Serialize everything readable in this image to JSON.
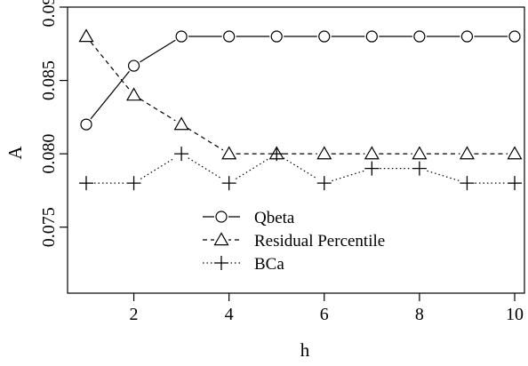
{
  "chart_data": {
    "type": "line",
    "title": "",
    "xlabel": "h",
    "ylabel": "A",
    "xlim": [
      1,
      10
    ],
    "ylim": [
      0.0705,
      0.09
    ],
    "x_ticks": [
      2,
      4,
      6,
      8,
      10
    ],
    "y_ticks": [
      0.075,
      0.08,
      0.085,
      0.09
    ],
    "x_tick_labels": [
      "2",
      "4",
      "6",
      "8",
      "10"
    ],
    "y_tick_labels": [
      "0.075",
      "0.080",
      "0.085",
      "0.090"
    ],
    "x": [
      1,
      2,
      3,
      4,
      5,
      6,
      7,
      8,
      9,
      10
    ],
    "series": [
      {
        "name": "Qbeta",
        "values": [
          0.082,
          0.086,
          0.088,
          0.088,
          0.088,
          0.088,
          0.088,
          0.088,
          0.088,
          0.088
        ],
        "marker": "circle",
        "line_style": "solid",
        "color": "#000000"
      },
      {
        "name": "Residual Percentile",
        "values": [
          0.088,
          0.084,
          0.082,
          0.08,
          0.08,
          0.08,
          0.08,
          0.08,
          0.08,
          0.08
        ],
        "marker": "triangle",
        "line_style": "dashed",
        "color": "#000000"
      },
      {
        "name": "BCa",
        "values": [
          0.078,
          0.078,
          0.08,
          0.078,
          0.08,
          0.078,
          0.079,
          0.079,
          0.078,
          0.078
        ],
        "marker": "plus",
        "line_style": "dotted",
        "color": "#000000"
      }
    ],
    "legend_position": "center",
    "grid": false
  }
}
